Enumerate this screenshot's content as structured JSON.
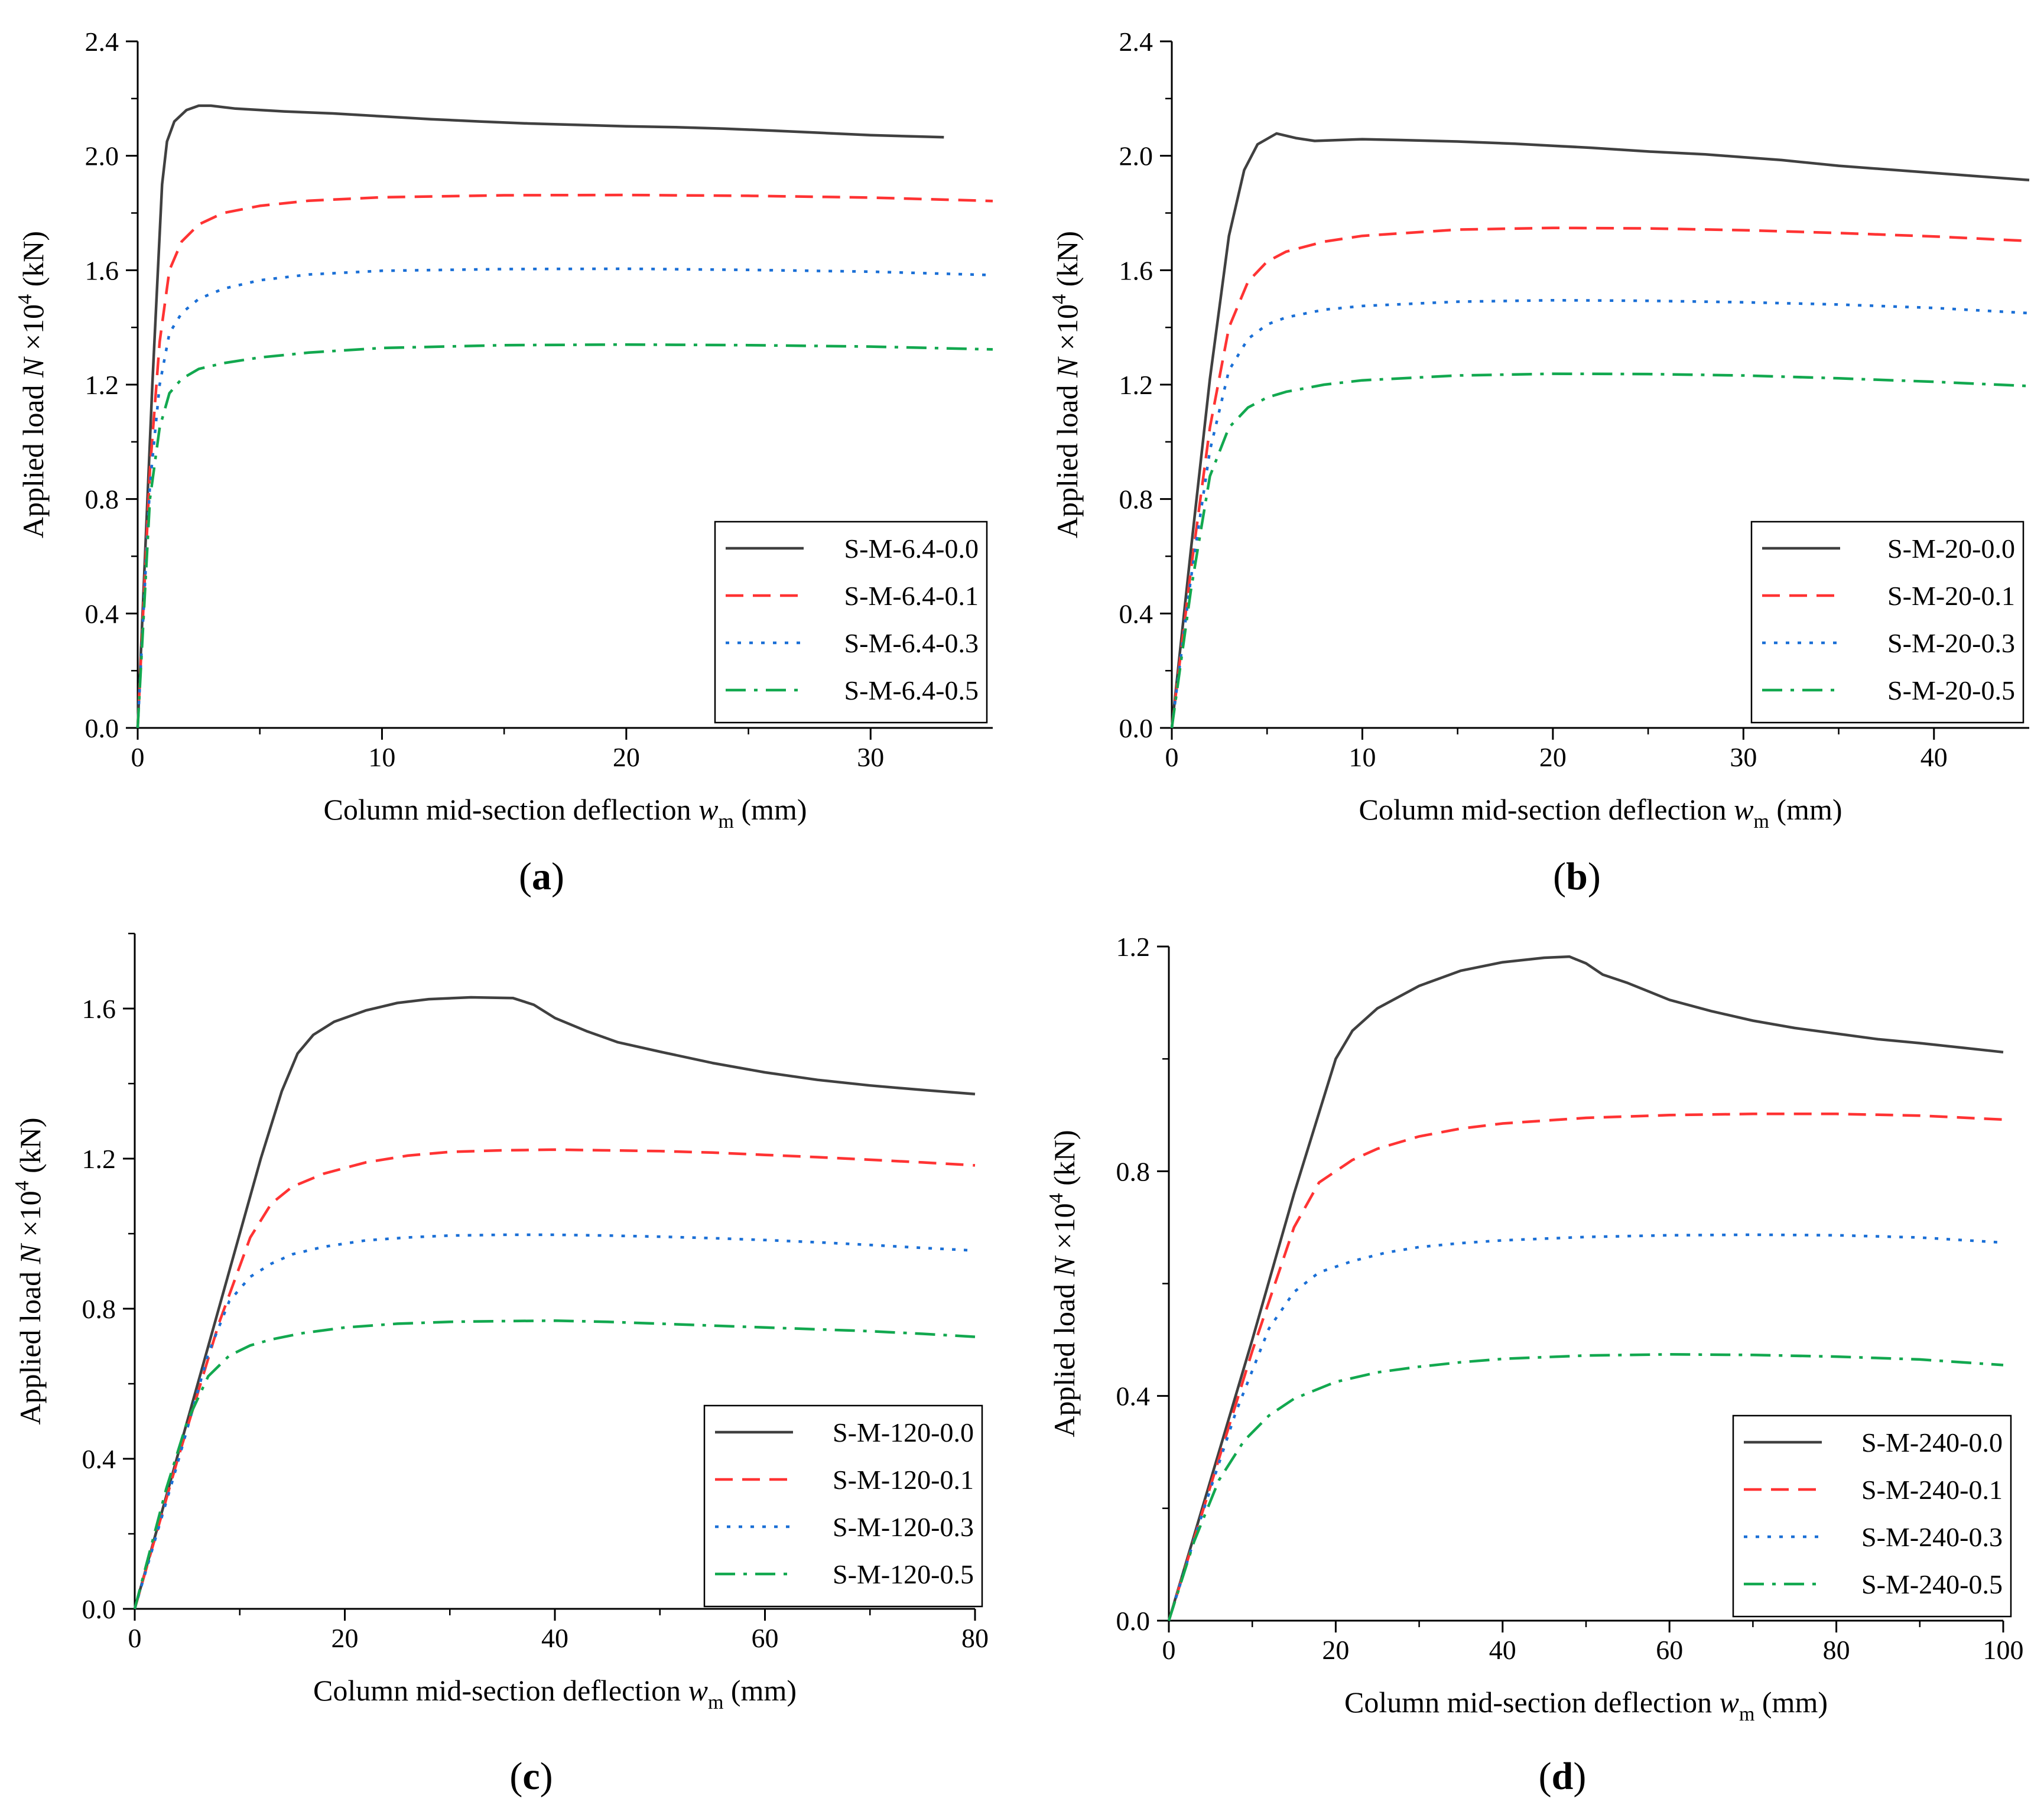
{
  "chart_data": [
    {
      "id": "a",
      "type": "line",
      "panel_label": "a",
      "xlabel": {
        "main": "Column mid-section deflection ",
        "var": "w",
        "sub": "m",
        "unit": " (mm)"
      },
      "ylabel": {
        "main": "Applied load ",
        "var": "N",
        "mult": " ×10",
        "sup": "4",
        "unit": " (kN)"
      },
      "xlim": [
        0,
        35
      ],
      "ylim": [
        0,
        2.4
      ],
      "xticks": [
        0,
        10,
        20,
        30
      ],
      "xtick_labels": [
        "0",
        "10",
        "20",
        "30"
      ],
      "yticks": [
        0,
        0.4,
        0.8,
        1.2,
        1.6,
        2.0,
        2.4
      ],
      "ytick_labels": [
        "0.0",
        "0.4",
        "0.8",
        "1.2",
        "1.6",
        "2.0",
        "2.4"
      ],
      "legend_position": "bottom-right",
      "series": [
        {
          "name": "S-M-6.4-0.0",
          "color": "#404040",
          "style": "solid",
          "x": [
            0,
            0.6,
            1.0,
            1.2,
            1.5,
            2.0,
            2.5,
            3.0,
            4.0,
            6.0,
            8.0,
            10,
            12,
            14,
            16,
            18,
            20,
            22,
            24,
            26,
            28,
            30,
            33
          ],
          "y": [
            0,
            1.2,
            1.9,
            2.05,
            2.12,
            2.16,
            2.175,
            2.175,
            2.165,
            2.155,
            2.148,
            2.138,
            2.128,
            2.12,
            2.113,
            2.108,
            2.103,
            2.1,
            2.095,
            2.088,
            2.08,
            2.072,
            2.065
          ]
        },
        {
          "name": "S-M-6.4-0.1",
          "color": "#ff3333",
          "style": "dashed",
          "x": [
            0,
            0.5,
            0.9,
            1.3,
            1.8,
            2.5,
            3.5,
            5,
            7,
            10,
            15,
            20,
            25,
            30,
            35
          ],
          "y": [
            0,
            0.9,
            1.35,
            1.6,
            1.7,
            1.76,
            1.8,
            1.825,
            1.843,
            1.855,
            1.862,
            1.863,
            1.86,
            1.854,
            1.842
          ]
        },
        {
          "name": "S-M-6.4-0.3",
          "color": "#1a6fd6",
          "style": "dotted",
          "x": [
            0,
            0.5,
            0.9,
            1.3,
            1.8,
            2.5,
            3.5,
            5,
            7,
            10,
            15,
            20,
            25,
            30,
            35
          ],
          "y": [
            0,
            0.85,
            1.2,
            1.38,
            1.45,
            1.5,
            1.535,
            1.565,
            1.585,
            1.598,
            1.604,
            1.605,
            1.601,
            1.595,
            1.583
          ]
        },
        {
          "name": "S-M-6.4-0.5",
          "color": "#12a84f",
          "style": "dashdot",
          "x": [
            0,
            0.5,
            0.9,
            1.3,
            1.8,
            2.5,
            3.5,
            5,
            7,
            10,
            15,
            20,
            25,
            30,
            35
          ],
          "y": [
            0,
            0.8,
            1.05,
            1.17,
            1.22,
            1.255,
            1.275,
            1.295,
            1.312,
            1.328,
            1.338,
            1.34,
            1.338,
            1.333,
            1.323
          ]
        }
      ],
      "legend": [
        "S-M-6.4-0.0",
        "S-M-6.4-0.1",
        "S-M-6.4-0.3",
        "S-M-6.4-0.5"
      ]
    },
    {
      "id": "b",
      "type": "line",
      "panel_label": "b",
      "xlabel": {
        "main": "Column mid-section deflection ",
        "var": "w",
        "sub": "m",
        "unit": " (mm)"
      },
      "ylabel": {
        "main": "Applied load ",
        "var": "N",
        "mult": " ×10",
        "sup": "4",
        "unit": " (kN)"
      },
      "xlim": [
        0,
        45
      ],
      "ylim": [
        0,
        2.4
      ],
      "xticks": [
        0,
        10,
        20,
        30,
        40
      ],
      "xtick_labels": [
        "0",
        "10",
        "20",
        "30",
        "40"
      ],
      "yticks": [
        0,
        0.4,
        0.8,
        1.2,
        1.6,
        2.0,
        2.4
      ],
      "ytick_labels": [
        "0.0",
        "0.4",
        "0.8",
        "1.2",
        "1.6",
        "2.0",
        "2.4"
      ],
      "legend_position": "bottom-right",
      "series": [
        {
          "name": "S-M-20-0.0",
          "color": "#404040",
          "style": "solid",
          "x": [
            0,
            1.0,
            2.0,
            3.0,
            3.8,
            4.5,
            5.5,
            6.5,
            7.5,
            10,
            12,
            15,
            18,
            20,
            22,
            25,
            28,
            30,
            32,
            35,
            38,
            40,
            42,
            45
          ],
          "y": [
            0,
            0.62,
            1.22,
            1.72,
            1.95,
            2.04,
            2.078,
            2.062,
            2.052,
            2.058,
            2.055,
            2.05,
            2.042,
            2.035,
            2.028,
            2.015,
            2.005,
            1.995,
            1.985,
            1.965,
            1.95,
            1.94,
            1.93,
            1.915
          ]
        },
        {
          "name": "S-M-20-0.1",
          "color": "#ff3333",
          "style": "dashed",
          "x": [
            0,
            1,
            2,
            3,
            4,
            5,
            6,
            8,
            10,
            15,
            20,
            25,
            30,
            35,
            40,
            45
          ],
          "y": [
            0,
            0.55,
            1.05,
            1.4,
            1.56,
            1.63,
            1.665,
            1.7,
            1.72,
            1.742,
            1.748,
            1.746,
            1.74,
            1.73,
            1.718,
            1.702
          ]
        },
        {
          "name": "S-M-20-0.3",
          "color": "#1a6fd6",
          "style": "dotted",
          "x": [
            0,
            1,
            2,
            3,
            4,
            5,
            6,
            8,
            10,
            15,
            20,
            25,
            30,
            35,
            40,
            45
          ],
          "y": [
            0,
            0.52,
            0.97,
            1.25,
            1.36,
            1.41,
            1.435,
            1.462,
            1.475,
            1.49,
            1.495,
            1.493,
            1.488,
            1.48,
            1.468,
            1.45
          ]
        },
        {
          "name": "S-M-20-0.5",
          "color": "#12a84f",
          "style": "dashdot",
          "x": [
            0,
            1,
            2,
            3,
            4,
            5,
            6,
            8,
            10,
            15,
            20,
            25,
            30,
            35,
            40,
            45
          ],
          "y": [
            0,
            0.48,
            0.88,
            1.05,
            1.12,
            1.155,
            1.175,
            1.2,
            1.215,
            1.232,
            1.238,
            1.237,
            1.232,
            1.222,
            1.21,
            1.195
          ]
        }
      ],
      "legend": [
        "S-M-20-0.0",
        "S-M-20-0.1",
        "S-M-20-0.3",
        "S-M-20-0.5"
      ]
    },
    {
      "id": "c",
      "type": "line",
      "panel_label": "c",
      "xlabel": {
        "main": "Column mid-section deflection ",
        "var": "w",
        "sub": "m",
        "unit": " (mm)"
      },
      "ylabel": {
        "main": "Applied load ",
        "var": "N",
        "mult": " ×10",
        "sup": "4",
        "unit": " (kN)"
      },
      "xlim": [
        0,
        80
      ],
      "ylim": [
        0,
        1.8
      ],
      "xticks": [
        0,
        20,
        40,
        60,
        80
      ],
      "xtick_labels": [
        "0",
        "20",
        "40",
        "60",
        "80"
      ],
      "yticks": [
        0,
        0.4,
        0.8,
        1.2,
        1.6
      ],
      "ytick_labels": [
        "0.0",
        "0.4",
        "0.8",
        "1.2",
        "1.6"
      ],
      "legend_position": "bottom-right",
      "series": [
        {
          "name": "S-M-120-0.0",
          "color": "#404040",
          "style": "solid",
          "x": [
            0,
            4,
            8,
            12,
            14,
            15.5,
            17,
            19,
            22,
            25,
            28,
            32,
            36,
            38,
            40,
            43,
            46,
            50,
            55,
            60,
            65,
            70,
            75,
            80
          ],
          "y": [
            0,
            0.4,
            0.8,
            1.2,
            1.38,
            1.48,
            1.53,
            1.565,
            1.595,
            1.615,
            1.625,
            1.63,
            1.628,
            1.61,
            1.575,
            1.54,
            1.51,
            1.485,
            1.455,
            1.43,
            1.41,
            1.395,
            1.383,
            1.372
          ]
        },
        {
          "name": "S-M-120-0.1",
          "color": "#ff3333",
          "style": "dashed",
          "x": [
            0,
            4,
            8,
            11,
            13,
            15,
            18,
            22,
            26,
            30,
            35,
            40,
            45,
            50,
            55,
            60,
            65,
            70,
            75,
            80
          ],
          "y": [
            0,
            0.39,
            0.76,
            0.99,
            1.08,
            1.125,
            1.16,
            1.19,
            1.208,
            1.218,
            1.222,
            1.224,
            1.222,
            1.22,
            1.216,
            1.21,
            1.204,
            1.197,
            1.19,
            1.182
          ]
        },
        {
          "name": "S-M-120-0.3",
          "color": "#1a6fd6",
          "style": "dotted",
          "x": [
            0,
            4,
            7,
            9,
            11,
            13,
            15,
            18,
            22,
            26,
            30,
            35,
            40,
            45,
            50,
            55,
            60,
            65,
            70,
            75,
            80
          ],
          "y": [
            0,
            0.38,
            0.68,
            0.82,
            0.885,
            0.92,
            0.945,
            0.965,
            0.982,
            0.99,
            0.995,
            0.997,
            0.997,
            0.995,
            0.992,
            0.988,
            0.983,
            0.977,
            0.97,
            0.962,
            0.955
          ]
        },
        {
          "name": "S-M-120-0.5",
          "color": "#12a84f",
          "style": "dashdot",
          "x": [
            0,
            3,
            5,
            7,
            9,
            11,
            13,
            16,
            20,
            25,
            30,
            35,
            40,
            45,
            50,
            55,
            60,
            65,
            70,
            75,
            80
          ],
          "y": [
            0,
            0.32,
            0.5,
            0.62,
            0.675,
            0.702,
            0.718,
            0.735,
            0.75,
            0.76,
            0.765,
            0.767,
            0.768,
            0.765,
            0.76,
            0.755,
            0.75,
            0.745,
            0.74,
            0.733,
            0.725
          ]
        }
      ],
      "legend": [
        "S-M-120-0.0",
        "S-M-120-0.1",
        "S-M-120-0.3",
        "S-M-120-0.5"
      ]
    },
    {
      "id": "d",
      "type": "line",
      "panel_label": "d",
      "xlabel": {
        "main": "Column mid-section deflection ",
        "var": "w",
        "sub": "m",
        "unit": " (mm)"
      },
      "ylabel": {
        "main": "Applied load ",
        "var": "N",
        "mult": " ×10",
        "sup": "4",
        "unit": " (kN)"
      },
      "xlim": [
        0,
        100
      ],
      "ylim": [
        0,
        1.2
      ],
      "xticks": [
        0,
        20,
        40,
        60,
        80,
        100
      ],
      "xtick_labels": [
        "0",
        "20",
        "40",
        "60",
        "80",
        "100"
      ],
      "yticks": [
        0,
        0.4,
        0.8,
        1.2
      ],
      "ytick_labels": [
        "0.0",
        "0.4",
        "0.8",
        "1.2"
      ],
      "legend_position": "bottom-right",
      "series": [
        {
          "name": "S-M-240-0.0",
          "color": "#404040",
          "style": "solid",
          "x": [
            0,
            5,
            10,
            15,
            20,
            22,
            25,
            30,
            35,
            40,
            45,
            48,
            50,
            52,
            55,
            60,
            65,
            70,
            75,
            80,
            85,
            90,
            95,
            100
          ],
          "y": [
            0,
            0.25,
            0.5,
            0.76,
            1.0,
            1.05,
            1.09,
            1.13,
            1.157,
            1.172,
            1.18,
            1.182,
            1.17,
            1.15,
            1.135,
            1.105,
            1.085,
            1.068,
            1.055,
            1.045,
            1.035,
            1.028,
            1.02,
            1.012
          ]
        },
        {
          "name": "S-M-240-0.1",
          "color": "#ff3333",
          "style": "dashed",
          "x": [
            0,
            5,
            10,
            15,
            18,
            20,
            22,
            25,
            30,
            35,
            40,
            50,
            60,
            70,
            80,
            90,
            100
          ],
          "y": [
            0,
            0.24,
            0.48,
            0.7,
            0.78,
            0.8,
            0.82,
            0.84,
            0.862,
            0.876,
            0.885,
            0.895,
            0.9,
            0.902,
            0.902,
            0.899,
            0.892
          ]
        },
        {
          "name": "S-M-240-0.3",
          "color": "#1a6fd6",
          "style": "dotted",
          "x": [
            0,
            4,
            8,
            12,
            15,
            18,
            22,
            26,
            30,
            35,
            40,
            50,
            60,
            70,
            80,
            90,
            100
          ],
          "y": [
            0,
            0.19,
            0.37,
            0.52,
            0.585,
            0.62,
            0.64,
            0.655,
            0.665,
            0.672,
            0.677,
            0.683,
            0.686,
            0.687,
            0.686,
            0.682,
            0.673
          ]
        },
        {
          "name": "S-M-240-0.5",
          "color": "#12a84f",
          "style": "dashdot",
          "x": [
            0,
            3,
            6,
            9,
            12,
            15,
            20,
            25,
            30,
            35,
            40,
            50,
            60,
            70,
            80,
            90,
            100
          ],
          "y": [
            0,
            0.14,
            0.25,
            0.32,
            0.365,
            0.395,
            0.425,
            0.442,
            0.452,
            0.46,
            0.466,
            0.472,
            0.474,
            0.473,
            0.47,
            0.465,
            0.455
          ]
        }
      ],
      "legend": [
        "S-M-240-0.0",
        "S-M-240-0.1",
        "S-M-240-0.3",
        "S-M-240-0.5"
      ]
    }
  ]
}
